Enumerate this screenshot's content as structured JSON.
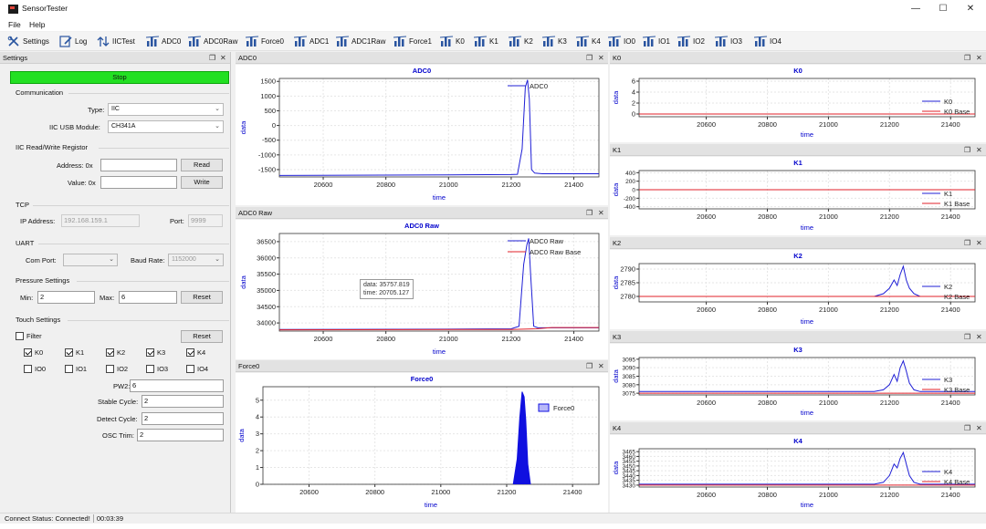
{
  "app": {
    "title": "SensorTester",
    "status": "Connect Status: Connected!",
    "elapsed": "00:03:39"
  },
  "menu": [
    "File",
    "Help"
  ],
  "toolbar": [
    "Settings",
    "Log",
    "IICTest",
    "ADC0",
    "ADC0Raw",
    "Force0",
    "ADC1",
    "ADC1Raw",
    "Force1",
    "K0",
    "K1",
    "K2",
    "K3",
    "K4",
    "IO0",
    "IO1",
    "IO2",
    "IO3",
    "IO4"
  ],
  "settings": {
    "panel_title": "Settings",
    "stop_label": "Stop",
    "communication": {
      "title": "Communication",
      "type_label": "Type:",
      "type_value": "IIC",
      "module_label": "IIC USB Module:",
      "module_value": "CH341A"
    },
    "iic": {
      "title": "IIC Read/Write Registor",
      "address_label": "Address: 0x",
      "address_value": "",
      "value_label": "Value: 0x",
      "value_value": "",
      "read_label": "Read",
      "write_label": "Write"
    },
    "tcp": {
      "title": "TCP",
      "ip_label": "IP Address:",
      "ip_value": "192.168.159.1",
      "port_label": "Port:",
      "port_value": "9999"
    },
    "uart": {
      "title": "UART",
      "com_label": "Com Port:",
      "com_value": "",
      "baud_label": "Baud Rate:",
      "baud_value": "1152000"
    },
    "pressure": {
      "title": "Pressure Settings",
      "min_label": "Min:",
      "min_value": "2",
      "max_label": "Max:",
      "max_value": "6",
      "reset_label": "Reset"
    },
    "touch": {
      "title": "Touch Settings",
      "filter_label": "Filter",
      "filter_checked": false,
      "reset_label": "Reset",
      "keys": [
        {
          "label": "K0",
          "checked": true
        },
        {
          "label": "K1",
          "checked": true
        },
        {
          "label": "K2",
          "checked": true
        },
        {
          "label": "K3",
          "checked": true
        },
        {
          "label": "K4",
          "checked": true
        }
      ],
      "ios": [
        {
          "label": "IO0",
          "checked": false
        },
        {
          "label": "IO1",
          "checked": false
        },
        {
          "label": "IO2",
          "checked": false
        },
        {
          "label": "IO3",
          "checked": false
        },
        {
          "label": "IO4",
          "checked": false
        }
      ],
      "pw2_label": "PW2:",
      "pw2_value": "6",
      "stable_label": "Stable Cycle:",
      "stable_value": "2",
      "detect_label": "Detect Cycle:",
      "detect_value": "2",
      "osc_label": "OSC Trim:",
      "osc_value": "2"
    }
  },
  "colors": {
    "series": "#1f1fd6",
    "base": "#e0202a",
    "force_fill": "#1010e0",
    "title": "#0000cc",
    "stop": "#22e022"
  },
  "tooltip": {
    "line1": "data: 35757.819",
    "line2": "time: 20705.127"
  },
  "chart_data": [
    {
      "id": "adc0",
      "panel": "ADC0",
      "title": "ADC0",
      "type": "line",
      "xlabel": "time",
      "ylabel": "data",
      "xlim": [
        20460,
        21480
      ],
      "ylim": [
        -1750,
        1600
      ],
      "xticks": [
        20600,
        20800,
        21000,
        21200,
        21400
      ],
      "yticks": [
        1500,
        1000,
        500,
        0,
        -500,
        -1000,
        -1500
      ],
      "series": [
        {
          "name": "ADC0",
          "color": "#1f1fd6",
          "x": [
            20460,
            21000,
            21200,
            21220,
            21235,
            21245,
            21252,
            21258,
            21265,
            21275,
            21300,
            21480
          ],
          "y": [
            -1700,
            -1680,
            -1670,
            -1660,
            -800,
            1300,
            1550,
            900,
            -1500,
            -1620,
            -1640,
            -1640
          ]
        }
      ]
    },
    {
      "id": "adc0raw",
      "panel": "ADC0 Raw",
      "title": "ADC0 Raw",
      "type": "line",
      "xlabel": "time",
      "ylabel": "data",
      "xlim": [
        20460,
        21480
      ],
      "ylim": [
        33750,
        36750
      ],
      "xticks": [
        20600,
        20800,
        21000,
        21200,
        21400
      ],
      "yticks": [
        36500,
        36000,
        35500,
        35000,
        34500,
        34000
      ],
      "series": [
        {
          "name": "ADC0 Raw",
          "color": "#1f1fd6",
          "x": [
            20460,
            21000,
            21200,
            21225,
            21240,
            21250,
            21256,
            21262,
            21272,
            21285,
            21480
          ],
          "y": [
            33800,
            33810,
            33820,
            33900,
            35800,
            36400,
            36600,
            35500,
            33900,
            33850,
            33850
          ]
        },
        {
          "name": "ADC0 Raw Base",
          "color": "#e0202a",
          "x": [
            20460,
            21200,
            21280,
            21330,
            21480
          ],
          "y": [
            33790,
            33800,
            33820,
            33860,
            33860
          ]
        }
      ]
    },
    {
      "id": "force0",
      "panel": "Force0",
      "title": "Force0",
      "type": "area",
      "xlabel": "time",
      "ylabel": "data",
      "xlim": [
        20460,
        21480
      ],
      "ylim": [
        0,
        5.8
      ],
      "xticks": [
        20600,
        20800,
        21000,
        21200,
        21400
      ],
      "yticks": [
        5,
        4,
        3,
        2,
        1,
        0
      ],
      "series": [
        {
          "name": "Force0",
          "color": "#1010e0",
          "x": [
            21220,
            21232,
            21240,
            21247,
            21253,
            21258,
            21264,
            21272
          ],
          "y": [
            0,
            1.5,
            4,
            5.5,
            5.2,
            3.8,
            1.2,
            0
          ]
        }
      ]
    },
    {
      "id": "k0",
      "panel": "K0",
      "title": "K0",
      "type": "line",
      "xlabel": "time",
      "ylabel": "data",
      "xlim": [
        20380,
        21480
      ],
      "ylim": [
        -0.5,
        6.5
      ],
      "xticks": [
        20600,
        20800,
        21000,
        21200,
        21400
      ],
      "yticks": [
        6,
        4,
        2,
        0
      ],
      "series": [
        {
          "name": "K0",
          "color": "#1f1fd6",
          "x": [
            20380,
            21480
          ],
          "y": [
            0,
            0
          ]
        },
        {
          "name": "K0 Base",
          "color": "#e0202a",
          "x": [
            20380,
            21480
          ],
          "y": [
            0,
            0
          ]
        }
      ]
    },
    {
      "id": "k1",
      "panel": "K1",
      "title": "K1",
      "type": "line",
      "xlabel": "time",
      "ylabel": "data",
      "xlim": [
        20380,
        21480
      ],
      "ylim": [
        -450,
        450
      ],
      "xticks": [
        20600,
        20800,
        21000,
        21200,
        21400
      ],
      "yticks": [
        400,
        200,
        0,
        -200,
        -400
      ],
      "series": [
        {
          "name": "K1",
          "color": "#1f1fd6",
          "x": [
            20380,
            21480
          ],
          "y": [
            0,
            0
          ]
        },
        {
          "name": "K1 Base",
          "color": "#e0202a",
          "x": [
            20380,
            21480
          ],
          "y": [
            0,
            0
          ]
        }
      ]
    },
    {
      "id": "k2",
      "panel": "K2",
      "title": "K2",
      "type": "line",
      "xlabel": "time",
      "ylabel": "data",
      "xlim": [
        20380,
        21480
      ],
      "ylim": [
        2778,
        2792
      ],
      "xticks": [
        20600,
        20800,
        21000,
        21200,
        21400
      ],
      "yticks": [
        2790,
        2785,
        2780
      ],
      "series": [
        {
          "name": "K2",
          "color": "#1f1fd6",
          "x": [
            20380,
            21150,
            21180,
            21200,
            21215,
            21225,
            21235,
            21245,
            21255,
            21265,
            21280,
            21300,
            21480
          ],
          "y": [
            2780,
            2780,
            2781,
            2783,
            2786,
            2784,
            2788,
            2791,
            2786,
            2783,
            2781,
            2780,
            2780
          ]
        },
        {
          "name": "K2 Base",
          "color": "#e0202a",
          "x": [
            20380,
            21480
          ],
          "y": [
            2780,
            2780
          ]
        }
      ]
    },
    {
      "id": "k3",
      "panel": "K3",
      "title": "K3",
      "type": "line",
      "xlabel": "time",
      "ylabel": "data",
      "xlim": [
        20380,
        21480
      ],
      "ylim": [
        3074,
        3096
      ],
      "xticks": [
        20600,
        20800,
        21000,
        21200,
        21400
      ],
      "yticks": [
        3095,
        3090,
        3085,
        3080,
        3075
      ],
      "series": [
        {
          "name": "K3",
          "color": "#1f1fd6",
          "x": [
            20380,
            21150,
            21180,
            21200,
            21215,
            21225,
            21235,
            21245,
            21255,
            21265,
            21280,
            21300,
            21480
          ],
          "y": [
            3076,
            3076,
            3077,
            3080,
            3086,
            3082,
            3090,
            3094,
            3088,
            3081,
            3077,
            3076,
            3076
          ]
        },
        {
          "name": "K3 Base",
          "color": "#e0202a",
          "x": [
            20380,
            21480
          ],
          "y": [
            3075,
            3075
          ]
        }
      ]
    },
    {
      "id": "k4",
      "panel": "K4",
      "title": "K4",
      "type": "line",
      "xlabel": "time",
      "ylabel": "data",
      "xlim": [
        20380,
        21480
      ],
      "ylim": [
        3428,
        3468
      ],
      "xticks": [
        20600,
        20800,
        21000,
        21200,
        21400
      ],
      "yticks": [
        3465,
        3460,
        3455,
        3450,
        3445,
        3440,
        3435,
        3430
      ],
      "series": [
        {
          "name": "K4",
          "color": "#1f1fd6",
          "x": [
            20380,
            21150,
            21180,
            21200,
            21215,
            21225,
            21235,
            21245,
            21255,
            21265,
            21280,
            21300,
            21480
          ],
          "y": [
            3431,
            3431,
            3433,
            3440,
            3452,
            3448,
            3458,
            3464,
            3452,
            3440,
            3433,
            3431,
            3431
          ]
        },
        {
          "name": "K4 Base",
          "color": "#e0202a",
          "x": [
            20380,
            21480
          ],
          "y": [
            3430,
            3430
          ]
        }
      ]
    }
  ]
}
